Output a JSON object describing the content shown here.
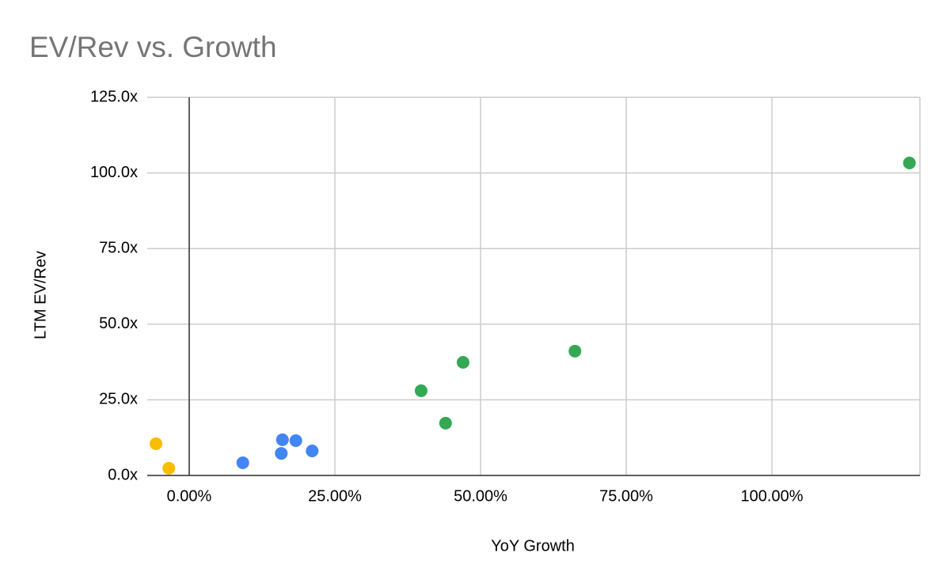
{
  "chart_data": {
    "type": "scatter",
    "title": "EV/Rev vs. Growth",
    "x_label": "YoY Growth",
    "y_label": "LTM EV/Rev",
    "series": [
      {
        "color": "#fbbc04",
        "x": [
          -5.7,
          -3.5
        ],
        "values": [
          10.5,
          2.4
        ]
      },
      {
        "color": "#4285f4",
        "x": [
          9.2,
          15.8,
          16.0,
          18.3,
          21.1
        ],
        "values": [
          4.2,
          7.3,
          11.8,
          11.5,
          8.1
        ]
      },
      {
        "color": "#34a853",
        "x": [
          39.8,
          44.0,
          47.0,
          66.2,
          123.6
        ],
        "values": [
          28.0,
          17.3,
          37.4,
          41.1,
          103.3
        ]
      }
    ],
    "xlim": [
      -7.2,
      125.4
    ],
    "xticks": [
      {
        "value": 0,
        "label": "0.00%"
      },
      {
        "value": 25,
        "label": "25.00%"
      },
      {
        "value": 50,
        "label": "50.00%"
      },
      {
        "value": 75,
        "label": "75.00%"
      },
      {
        "value": 100,
        "label": "100.00%"
      }
    ],
    "ylim": [
      0,
      125
    ],
    "yticks": [
      {
        "value": 0,
        "label": "0.0x"
      },
      {
        "value": 25,
        "label": "25.0x"
      },
      {
        "value": 50,
        "label": "50.0x"
      },
      {
        "value": 75,
        "label": "75.0x"
      },
      {
        "value": 100,
        "label": "100.0x"
      },
      {
        "value": 125,
        "label": "125.0x"
      }
    ],
    "grid": true
  }
}
